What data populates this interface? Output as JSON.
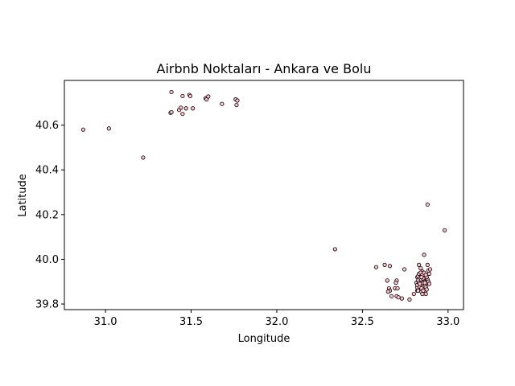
{
  "chart_data": {
    "type": "scatter",
    "title": "Airbnb Noktaları - Ankara ve Bolu",
    "xlabel": "Longitude",
    "ylabel": "Latitude",
    "xlim": [
      30.76,
      33.09
    ],
    "ylim": [
      39.775,
      40.8
    ],
    "xticks": [
      31.0,
      31.5,
      32.0,
      32.5,
      33.0
    ],
    "xtick_labels": [
      "31.0",
      "31.5",
      "32.0",
      "32.5",
      "33.0"
    ],
    "yticks": [
      39.8,
      40.0,
      40.2,
      40.4,
      40.6
    ],
    "ytick_labels": [
      "39.8",
      "40.0",
      "40.2",
      "40.4",
      "40.6"
    ],
    "grid": false,
    "marker_face": "#ffc0cb",
    "marker_edge": "#000000",
    "points": [
      [
        30.87,
        40.58
      ],
      [
        31.02,
        40.585
      ],
      [
        31.22,
        40.455
      ],
      [
        31.385,
        40.748
      ],
      [
        31.38,
        40.655
      ],
      [
        31.385,
        40.658
      ],
      [
        31.43,
        40.668
      ],
      [
        31.44,
        40.678
      ],
      [
        31.45,
        40.65
      ],
      [
        31.45,
        40.73
      ],
      [
        31.47,
        40.675
      ],
      [
        31.49,
        40.735
      ],
      [
        31.495,
        40.73
      ],
      [
        31.51,
        40.675
      ],
      [
        31.585,
        40.72
      ],
      [
        31.59,
        40.715
      ],
      [
        31.6,
        40.728
      ],
      [
        31.68,
        40.695
      ],
      [
        31.76,
        40.715
      ],
      [
        31.765,
        40.69
      ],
      [
        31.77,
        40.71
      ],
      [
        32.34,
        40.045
      ],
      [
        32.88,
        40.245
      ],
      [
        32.98,
        40.13
      ],
      [
        32.86,
        40.02
      ],
      [
        32.58,
        39.965
      ],
      [
        32.63,
        39.975
      ],
      [
        32.66,
        39.97
      ],
      [
        32.645,
        39.905
      ],
      [
        32.7,
        39.905
      ],
      [
        32.695,
        39.895
      ],
      [
        32.745,
        39.955
      ],
      [
        32.655,
        39.87
      ],
      [
        32.66,
        39.86
      ],
      [
        32.65,
        39.855
      ],
      [
        32.67,
        39.835
      ],
      [
        32.69,
        39.87
      ],
      [
        32.705,
        39.87
      ],
      [
        32.7,
        39.835
      ],
      [
        32.71,
        39.83
      ],
      [
        32.73,
        39.825
      ],
      [
        32.775,
        39.82
      ],
      [
        32.8,
        39.845
      ],
      [
        32.82,
        39.86
      ],
      [
        32.82,
        39.875
      ],
      [
        32.83,
        39.975
      ],
      [
        32.84,
        39.96
      ],
      [
        32.85,
        39.945
      ],
      [
        32.855,
        39.93
      ],
      [
        32.86,
        39.92
      ],
      [
        32.865,
        39.91
      ],
      [
        32.87,
        39.9
      ],
      [
        32.875,
        39.89
      ],
      [
        32.88,
        39.975
      ],
      [
        32.885,
        39.95
      ],
      [
        32.89,
        39.935
      ],
      [
        32.895,
        39.955
      ],
      [
        32.82,
        39.92
      ],
      [
        32.825,
        39.925
      ],
      [
        32.83,
        39.935
      ],
      [
        32.835,
        39.915
      ],
      [
        32.84,
        39.905
      ],
      [
        32.845,
        39.895
      ],
      [
        32.85,
        39.885
      ],
      [
        32.855,
        39.875
      ],
      [
        32.86,
        39.865
      ],
      [
        32.865,
        39.855
      ],
      [
        32.87,
        39.845
      ],
      [
        32.875,
        39.905
      ],
      [
        32.815,
        39.895
      ],
      [
        32.82,
        39.885
      ],
      [
        32.825,
        39.905
      ],
      [
        32.83,
        39.895
      ],
      [
        32.835,
        39.875
      ],
      [
        32.84,
        39.865
      ],
      [
        32.845,
        39.855
      ],
      [
        32.85,
        39.845
      ],
      [
        32.855,
        39.915
      ],
      [
        32.86,
        39.9
      ],
      [
        32.865,
        39.885
      ],
      [
        32.87,
        39.875
      ],
      [
        32.875,
        39.865
      ],
      [
        32.88,
        39.91
      ],
      [
        32.885,
        39.9
      ],
      [
        32.89,
        39.89
      ],
      [
        32.84,
        39.94
      ],
      [
        32.85,
        39.93
      ],
      [
        32.86,
        39.94
      ],
      [
        32.845,
        39.92
      ],
      [
        32.835,
        39.89
      ],
      [
        32.855,
        39.895
      ],
      [
        32.865,
        39.895
      ],
      [
        32.875,
        39.92
      ],
      [
        32.825,
        39.86
      ],
      [
        32.845,
        39.87
      ],
      [
        32.855,
        39.86
      ],
      [
        32.87,
        39.93
      ]
    ]
  }
}
